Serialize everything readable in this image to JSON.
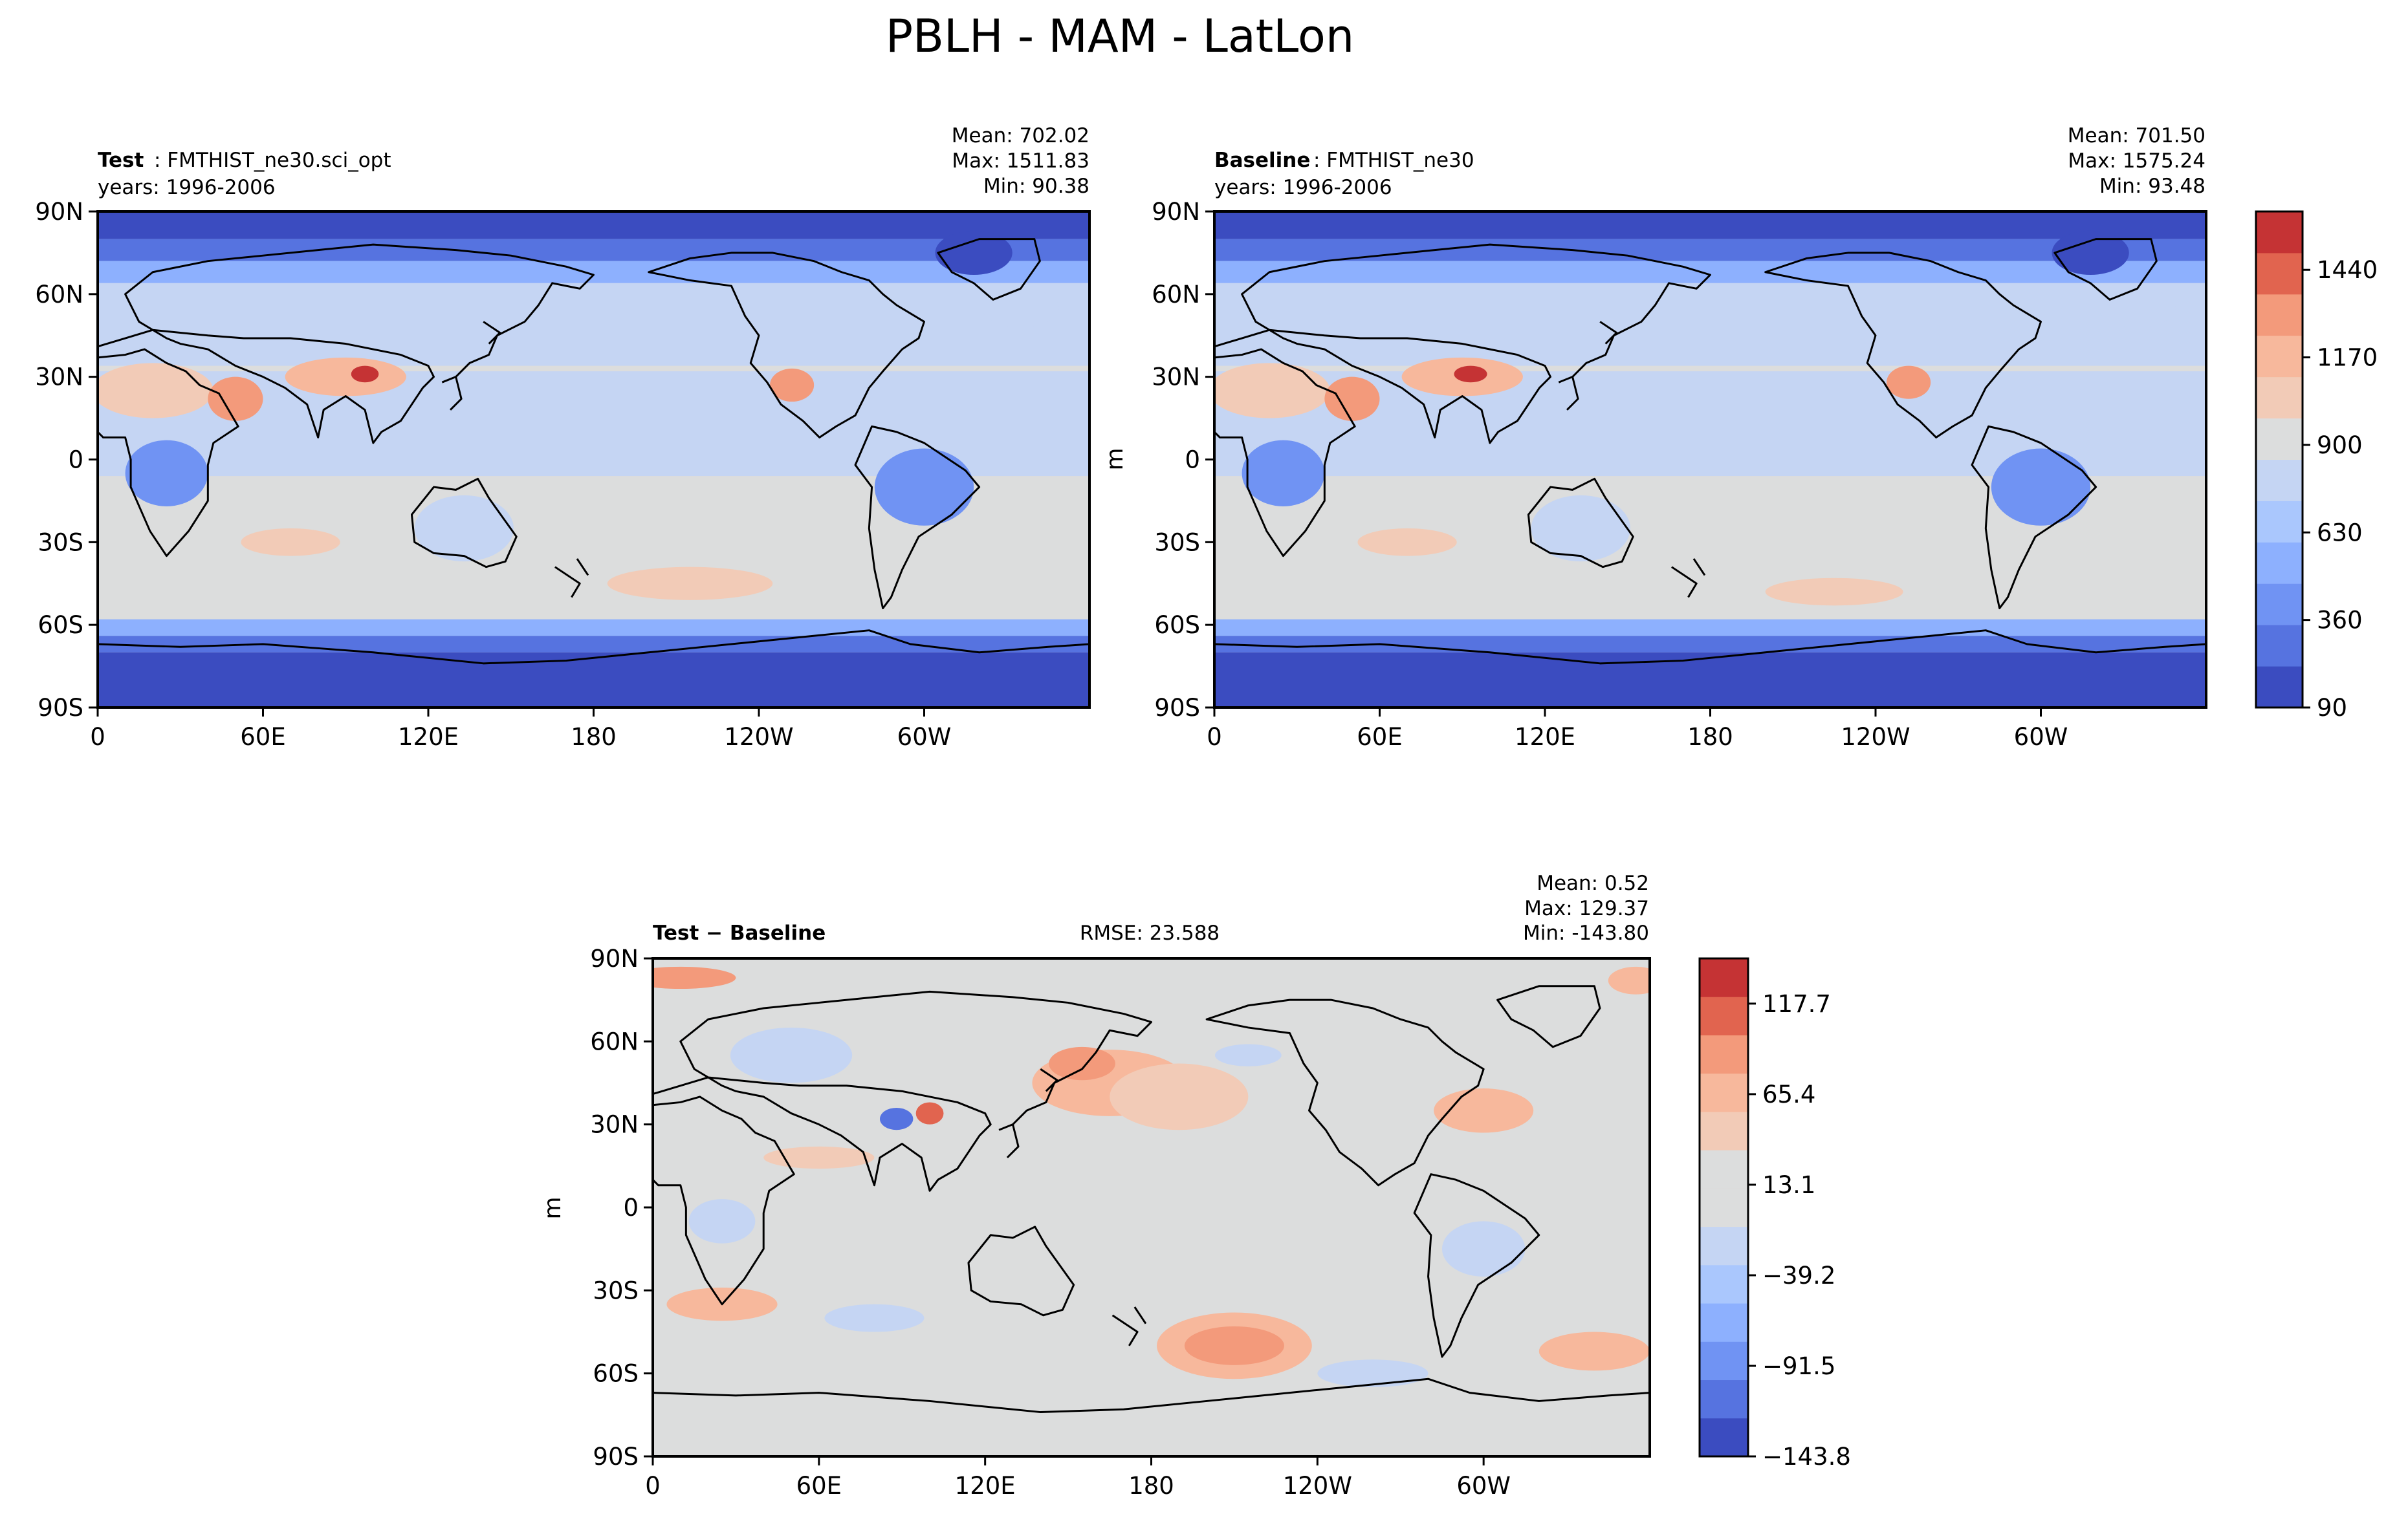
{
  "figure": {
    "title": "PBLH - MAM - LatLon"
  },
  "colors": {
    "test_levels": [
      "#3b4cc0",
      "#5673e0",
      "#7093f3",
      "#8db0fe",
      "#aac7fd",
      "#c5d5f3",
      "#dcdddd",
      "#f2cbb7",
      "#f7b89c",
      "#f39a7b",
      "#e1644f",
      "#c53334"
    ],
    "diff_levels": [
      "#3b4cc0",
      "#5673e0",
      "#7093f3",
      "#8db0fe",
      "#aac7fd",
      "#c5d5f3",
      "#dcdddd",
      "#dcdddd",
      "#f2cbb7",
      "#f7b89c",
      "#f39a7b",
      "#e1644f",
      "#c53334"
    ],
    "coast": "#000000"
  },
  "chart_data": [
    {
      "type": "heatmap",
      "panel": "test",
      "label_bold": "Test",
      "label_case": ": FMTHIST_ne30.sci_opt",
      "years": "years: 1996-2006",
      "stats": {
        "mean": "Mean: 702.02",
        "max": "Max: 1511.83",
        "min": "Min: 90.38"
      },
      "x_ticks": [
        "0",
        "60E",
        "120E",
        "180",
        "120W",
        "60W"
      ],
      "y_ticks": [
        "90N",
        "60N",
        "30N",
        "0",
        "30S",
        "60S",
        "90S"
      ],
      "xlim": [
        0,
        360
      ],
      "ylim": [
        -90,
        90
      ]
    },
    {
      "type": "heatmap",
      "panel": "baseline",
      "label_bold": "Baseline",
      "label_case": ": FMTHIST_ne30",
      "years": "years: 1996-2006",
      "ylabel": "m",
      "stats": {
        "mean": "Mean: 701.50",
        "max": "Max: 1575.24",
        "min": "Min: 93.48"
      },
      "x_ticks": [
        "0",
        "60E",
        "120E",
        "180",
        "120W",
        "60W"
      ],
      "y_ticks": [
        "90N",
        "60N",
        "30N",
        "0",
        "30S",
        "60S",
        "90S"
      ],
      "colorbar_ticks": [
        "90",
        "360",
        "630",
        "900",
        "1170",
        "1440"
      ],
      "colorbar_values": [
        90,
        360,
        630,
        900,
        1170,
        1440
      ],
      "colorbar_range": [
        90,
        1620
      ],
      "xlim": [
        0,
        360
      ],
      "ylim": [
        -90,
        90
      ]
    },
    {
      "type": "heatmap",
      "panel": "difference",
      "label_bold": "Test − Baseline",
      "rmse": "RMSE: 23.588",
      "ylabel": "m",
      "stats": {
        "mean": "Mean:  0.52",
        "max": "Max: 129.37",
        "min": "Min: -143.80"
      },
      "x_ticks": [
        "0",
        "60E",
        "120E",
        "180",
        "120W",
        "60W"
      ],
      "y_ticks": [
        "90N",
        "60N",
        "30N",
        "0",
        "30S",
        "60S",
        "90S"
      ],
      "colorbar_ticks": [
        "−143.8",
        "−91.5",
        "−39.2",
        "13.1",
        "65.4",
        "117.7"
      ],
      "colorbar_values": [
        -143.8,
        -91.5,
        -39.2,
        13.1,
        65.4,
        117.7
      ],
      "colorbar_range": [
        -143.8,
        143.8
      ],
      "xlim": [
        0,
        360
      ],
      "ylim": [
        -90,
        90
      ]
    }
  ]
}
